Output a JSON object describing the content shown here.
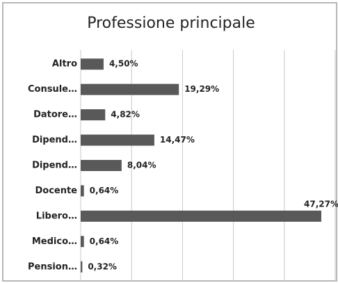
{
  "chart_data": {
    "type": "hbar",
    "title": "Professione principale",
    "categories": [
      "Altro",
      "Consule…",
      "Datore…",
      "Dipend…",
      "Dipend…",
      "Docente",
      "Libero…",
      "Medico…",
      "Pension…"
    ],
    "values": [
      4.5,
      19.29,
      4.82,
      14.47,
      8.04,
      0.64,
      47.27,
      0.64,
      0.32
    ],
    "value_labels": [
      "4,50%",
      "19,29%",
      "4,82%",
      "14,47%",
      "8,04%",
      "0,64%",
      "47,27%",
      "0,64%",
      "0,32%"
    ],
    "color": "#595959",
    "xlim": [
      0,
      50
    ],
    "xticks": [
      0,
      10,
      20,
      30,
      40,
      50
    ],
    "grid": true
  }
}
